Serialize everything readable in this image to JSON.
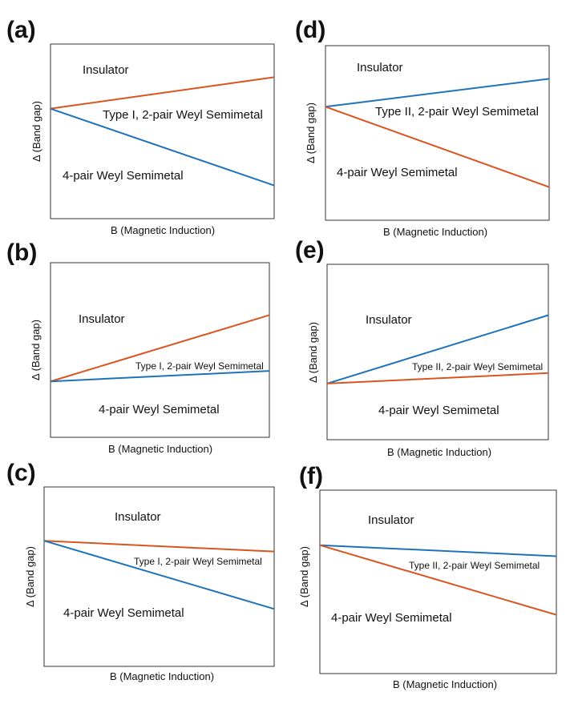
{
  "colors": {
    "orange": "#D9541E",
    "blue": "#1F72BA"
  },
  "panels": [
    {
      "label": "(a)",
      "insulator": "Insulator",
      "middle": "Type I, 2-pair Weyl Semimetal",
      "bottom": "4-pair Weyl Semimetal",
      "xlabel": "B (Magnetic Induction)",
      "ylabel": "Δ (Band gap)",
      "upper_line": {
        "color": "orange",
        "start": 0.63,
        "end": 0.81
      },
      "lower_line": {
        "color": "blue",
        "start": 0.63,
        "end": 0.19
      }
    },
    {
      "label": "(b)",
      "insulator": "Insulator",
      "middle": "Type I, 2-pair Weyl Semimetal",
      "bottom": "4-pair Weyl Semimetal",
      "xlabel": "B (Magnetic Induction)",
      "ylabel": "Δ (Band gap)",
      "upper_line": {
        "color": "orange",
        "start": 0.32,
        "end": 0.7
      },
      "lower_line": {
        "color": "blue",
        "start": 0.32,
        "end": 0.38
      }
    },
    {
      "label": "(c)",
      "insulator": "Insulator",
      "middle": "Type I, 2-pair Weyl Semimetal",
      "bottom": "4-pair Weyl Semimetal",
      "xlabel": "B (Magnetic Induction)",
      "ylabel": "Δ (Band gap)",
      "upper_line": {
        "color": "orange",
        "start": 0.7,
        "end": 0.64
      },
      "lower_line": {
        "color": "blue",
        "start": 0.7,
        "end": 0.32
      }
    },
    {
      "label": "(d)",
      "insulator": "Insulator",
      "middle": "Type II, 2-pair Weyl Semimetal",
      "bottom": "4-pair Weyl Semimetal",
      "xlabel": "B (Magnetic Induction)",
      "ylabel": "Δ (Band gap)",
      "upper_line": {
        "color": "blue",
        "start": 0.65,
        "end": 0.81
      },
      "lower_line": {
        "color": "orange",
        "start": 0.65,
        "end": 0.19
      }
    },
    {
      "label": "(e)",
      "insulator": "Insulator",
      "middle": "Type II, 2-pair Weyl Semimetal",
      "bottom": "4-pair Weyl Semimetal",
      "xlabel": "B (Magnetic Induction)",
      "ylabel": "Δ (Band gap)",
      "upper_line": {
        "color": "blue",
        "start": 0.32,
        "end": 0.71
      },
      "lower_line": {
        "color": "orange",
        "start": 0.32,
        "end": 0.38
      }
    },
    {
      "label": "(f)",
      "insulator": "Insulator",
      "middle": "Type II, 2-pair Weyl Semimetal",
      "bottom": "4-pair Weyl Semimetal",
      "xlabel": "B (Magnetic Induction)",
      "ylabel": "Δ (Band gap)",
      "upper_line": {
        "color": "blue",
        "start": 0.7,
        "end": 0.64
      },
      "lower_line": {
        "color": "orange",
        "start": 0.7,
        "end": 0.32
      }
    }
  ]
}
